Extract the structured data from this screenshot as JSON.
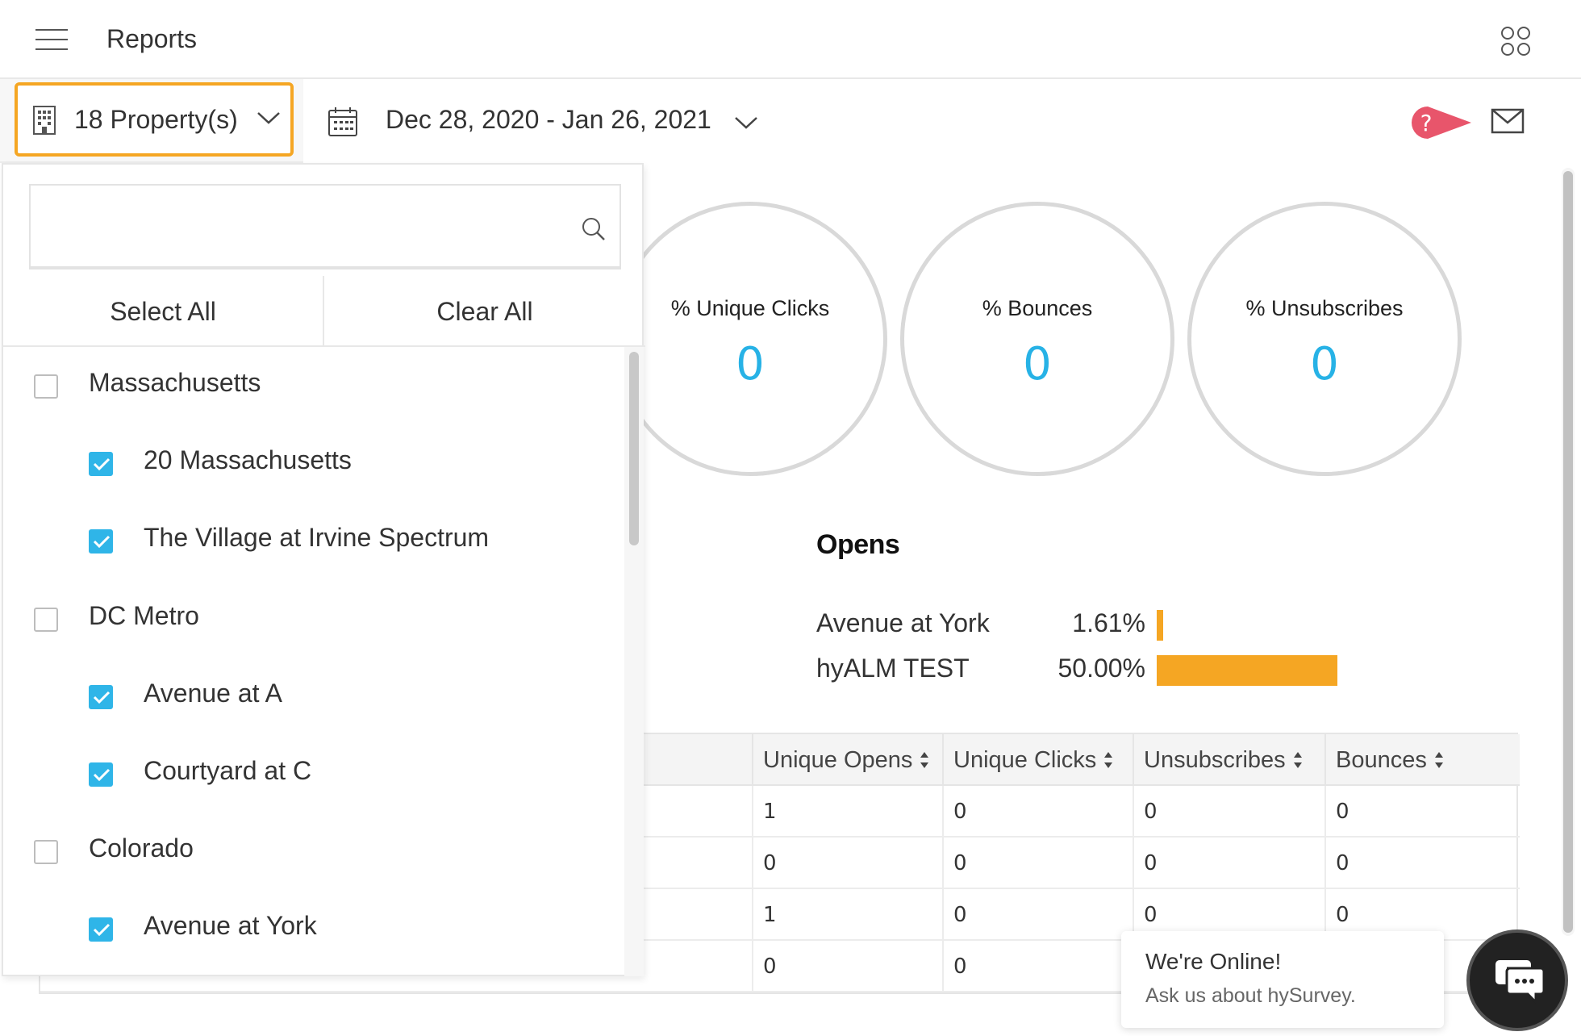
{
  "header": {
    "title": "Reports"
  },
  "toolbar": {
    "property_label": "18 Property(s)",
    "date_range": "Dec 28, 2020 - Jan 26, 2021",
    "help_symbol": "?"
  },
  "stats": [
    {
      "label": "% Unique Clicks",
      "value": "0"
    },
    {
      "label": "% Bounces",
      "value": "0"
    },
    {
      "label": "% Unsubscribes",
      "value": "0"
    }
  ],
  "opens": {
    "title": "Opens",
    "rows": [
      {
        "name": "Avenue at York",
        "percent": "1.61%",
        "value": 1.61
      },
      {
        "name": "hyALM TEST",
        "percent": "50.00%",
        "value": 50.0
      }
    ],
    "bar_color": "#f5a623"
  },
  "table": {
    "columns": [
      "Unique Opens",
      "Unique Clicks",
      "Unsubscribes",
      "Bounces"
    ],
    "rows": [
      [
        "1",
        "0",
        "0",
        "0"
      ],
      [
        "0",
        "0",
        "0",
        "0"
      ],
      [
        "1",
        "0",
        "0",
        "0"
      ],
      [
        "0",
        "0",
        "",
        ""
      ]
    ]
  },
  "dropdown": {
    "search_placeholder": "",
    "select_all": "Select All",
    "clear_all": "Clear All",
    "items": [
      {
        "label": "Massachusetts",
        "checked": false,
        "level": 0
      },
      {
        "label": "20 Massachusetts",
        "checked": true,
        "level": 1
      },
      {
        "label": "The Village at Irvine Spectrum",
        "checked": true,
        "level": 1
      },
      {
        "label": "DC Metro",
        "checked": false,
        "level": 0
      },
      {
        "label": "Avenue at A",
        "checked": true,
        "level": 1
      },
      {
        "label": "Courtyard at C",
        "checked": true,
        "level": 1
      },
      {
        "label": "Colorado",
        "checked": false,
        "level": 0
      },
      {
        "label": "Avenue at York",
        "checked": true,
        "level": 1
      }
    ]
  },
  "chat": {
    "title": "We're Online!",
    "subtitle": "Ask us about hySurvey."
  },
  "colors": {
    "accent": "#f5a623",
    "checkbox": "#2fb5e8",
    "stat_value": "#27b2e6",
    "help": "#e8556b"
  }
}
